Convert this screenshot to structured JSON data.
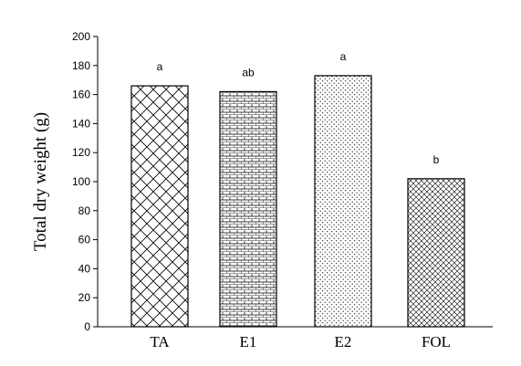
{
  "chart_data": {
    "type": "bar",
    "categories": [
      "TA",
      "E1",
      "E2",
      "FOL"
    ],
    "values": [
      166,
      162,
      173,
      102
    ],
    "significance_labels": [
      "a",
      "ab",
      "a",
      "b"
    ],
    "patterns": [
      "crosshatch",
      "brick",
      "dots",
      "diag-crosshatch"
    ],
    "ylabel": "Total dry weight (g)",
    "xlabel": "",
    "ylim": [
      0,
      200
    ],
    "yticks": [
      0,
      20,
      40,
      60,
      80,
      100,
      120,
      140,
      160,
      180,
      200
    ],
    "grid": false,
    "bar_fill": "#ffffff",
    "ink": "#000000"
  }
}
